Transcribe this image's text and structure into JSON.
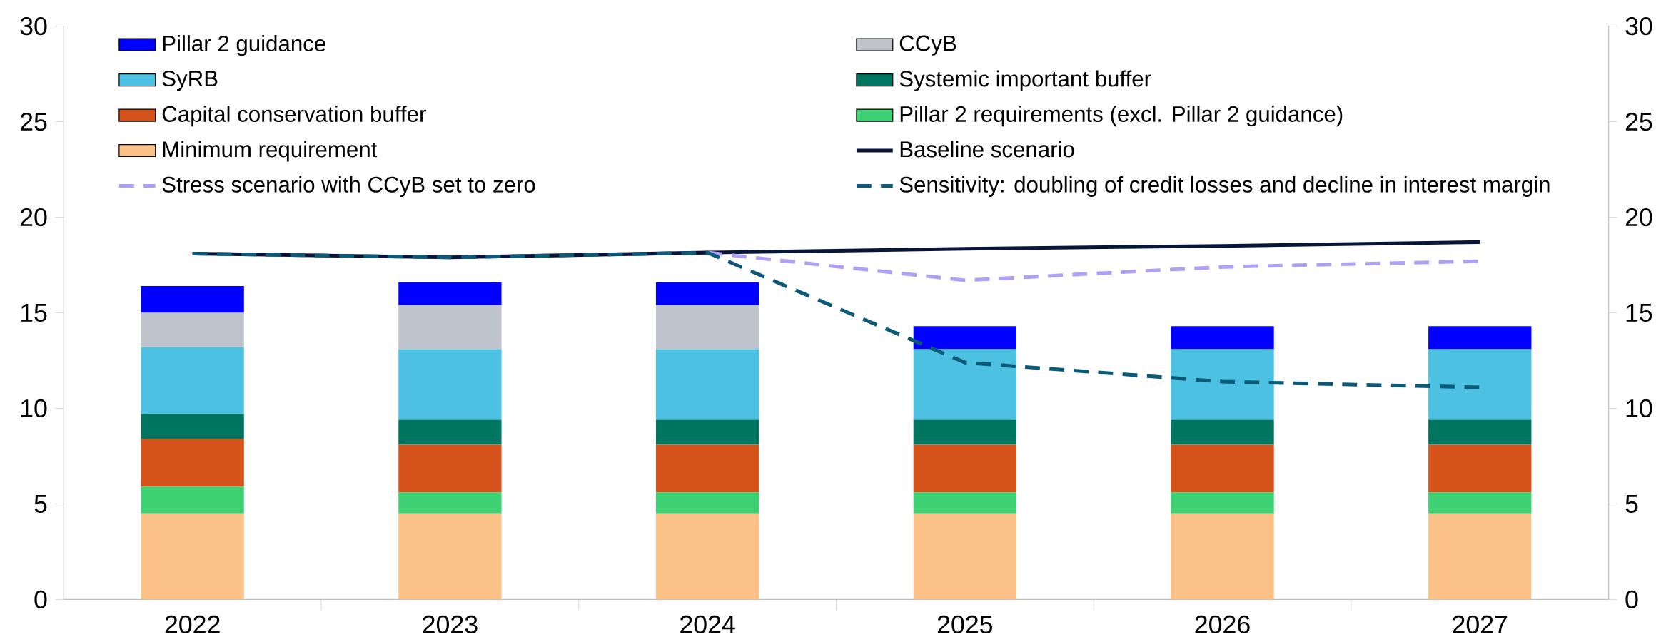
{
  "chart_data": {
    "type": "bar",
    "stacked": true,
    "legend": "top",
    "categories": [
      "2022",
      "2023",
      "2024",
      "2025",
      "2026",
      "2027"
    ],
    "series": [
      {
        "name": "Minimum requirement",
        "color": "#fcc187",
        "values": [
          4.5,
          4.5,
          4.5,
          4.5,
          4.5,
          4.5
        ]
      },
      {
        "name": "Pillar 2 requirements (excl. Pillar 2 guidance)",
        "color": "#3dd174",
        "values": [
          1.4,
          1.1,
          1.1,
          1.1,
          1.1,
          1.1
        ]
      },
      {
        "name": "Capital conservation buffer",
        "color": "#d5521a",
        "values": [
          2.5,
          2.5,
          2.5,
          2.5,
          2.5,
          2.5
        ]
      },
      {
        "name": "Systemic important buffer",
        "color": "#007560",
        "values": [
          1.3,
          1.3,
          1.3,
          1.3,
          1.3,
          1.3
        ]
      },
      {
        "name": "SyRB",
        "color": "#4dc1e2",
        "values": [
          3.5,
          3.7,
          3.7,
          3.7,
          3.7,
          3.7
        ]
      },
      {
        "name": "CCyB",
        "color": "#bfc3cb",
        "values": [
          1.8,
          2.3,
          2.3,
          0,
          0,
          0
        ]
      },
      {
        "name": "Pillar 2 guidance",
        "color": "#0000ff",
        "values": [
          1.4,
          1.2,
          1.2,
          1.2,
          1.2,
          1.2
        ]
      },
      {
        "name": "Baseline scenario",
        "type": "line",
        "line_style": "solid",
        "color": "#061538",
        "values": [
          18.1,
          17.9,
          18.15,
          18.35,
          18.5,
          18.7
        ]
      },
      {
        "name": "Stress scenario with CCyB set to zero",
        "type": "line",
        "line_style": "dashed",
        "color": "#aea0f5",
        "values": [
          null,
          null,
          18.15,
          16.7,
          17.4,
          17.7
        ]
      },
      {
        "name": "Sensitivity: doubling of credit losses and decline in interest margin",
        "type": "line",
        "line_style": "dashed",
        "color": "#0d5a78",
        "values": [
          18.1,
          17.9,
          18.15,
          12.4,
          11.4,
          11.1
        ]
      }
    ],
    "ylim": [
      0,
      30
    ],
    "yticks": [
      0,
      5,
      10,
      15,
      20,
      25,
      30
    ],
    "y2lim": [
      0,
      30
    ],
    "y2ticks": [
      0,
      5,
      10,
      15,
      20,
      25,
      30
    ]
  }
}
